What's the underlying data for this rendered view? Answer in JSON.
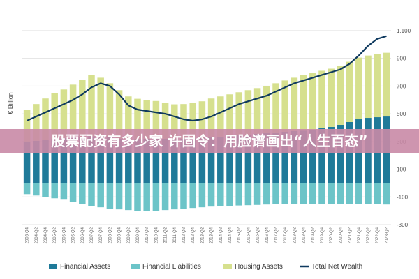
{
  "chart_data": {
    "type": "bar",
    "ylabel": "€ Billion",
    "ylim": [
      -300,
      1200
    ],
    "yticks": [
      -300,
      -100,
      100,
      300,
      500,
      700,
      900,
      1100
    ],
    "ytick_labels": [
      "-300",
      "-100",
      "100",
      "300",
      "500",
      "700",
      "900",
      "1,100"
    ],
    "grid": true,
    "legend_position": "bottom",
    "categories": [
      "2003-Q4",
      "2004-Q2",
      "2004-Q4",
      "2005-Q2",
      "2005-Q4",
      "2006-Q2",
      "2006-Q4",
      "2007-Q2",
      "2007-Q4",
      "2008-Q2",
      "2008-Q4",
      "2009-Q2",
      "2009-Q4",
      "2010-Q2",
      "2010-Q4",
      "2011-Q2",
      "2011-Q4",
      "2012-Q2",
      "2012-Q4",
      "2013-Q2",
      "2013-Q4",
      "2014-Q2",
      "2014-Q4",
      "2015-Q2",
      "2015-Q4",
      "2016-Q2",
      "2016-Q4",
      "2017-Q2",
      "2017-Q4",
      "2018-Q2",
      "2018-Q4",
      "2019-Q2",
      "2019-Q4",
      "2020-Q2",
      "2020-Q4",
      "2021-Q2",
      "2021-Q4",
      "2022-Q2",
      "2022-Q4",
      "2023-Q2"
    ],
    "series": [
      {
        "name": "Financial Assets",
        "kind": "bar",
        "color": "#1f7a99",
        "values": [
          300,
          305,
          310,
          318,
          325,
          330,
          335,
          338,
          340,
          330,
          320,
          315,
          318,
          320,
          322,
          320,
          318,
          320,
          322,
          325,
          330,
          335,
          340,
          345,
          350,
          355,
          360,
          365,
          370,
          375,
          378,
          385,
          395,
          405,
          420,
          440,
          460,
          470,
          475,
          480
        ]
      },
      {
        "name": "Financial Liabilities",
        "kind": "bar",
        "color": "#6cc4c8",
        "values": [
          -80,
          -90,
          -100,
          -110,
          -120,
          -135,
          -150,
          -165,
          -175,
          -185,
          -190,
          -195,
          -200,
          -200,
          -200,
          -195,
          -190,
          -185,
          -180,
          -175,
          -170,
          -168,
          -165,
          -162,
          -160,
          -158,
          -155,
          -153,
          -150,
          -150,
          -150,
          -150,
          -150,
          -150,
          -150,
          -150,
          -150,
          -152,
          -154,
          -155
        ]
      },
      {
        "name": "Housing Assets",
        "kind": "bar",
        "color": "#d6e08e",
        "values": [
          230,
          265,
          300,
          330,
          350,
          380,
          410,
          440,
          420,
          390,
          350,
          310,
          290,
          280,
          270,
          260,
          250,
          250,
          255,
          265,
          280,
          290,
          300,
          310,
          320,
          330,
          340,
          355,
          370,
          385,
          400,
          410,
          415,
          420,
          425,
          435,
          445,
          450,
          455,
          460
        ]
      },
      {
        "name": "Total Net Wealth",
        "kind": "line",
        "color": "#0f3a5f",
        "values": [
          450,
          480,
          510,
          540,
          570,
          600,
          640,
          690,
          720,
          700,
          640,
          560,
          530,
          520,
          510,
          500,
          480,
          460,
          450,
          460,
          480,
          510,
          540,
          570,
          590,
          610,
          630,
          660,
          690,
          720,
          740,
          760,
          780,
          800,
          820,
          860,
          920,
          990,
          1040,
          1060
        ]
      }
    ],
    "banner_text": "股票配资有多少家 许固令：用脸谱画出“人生百态”"
  }
}
